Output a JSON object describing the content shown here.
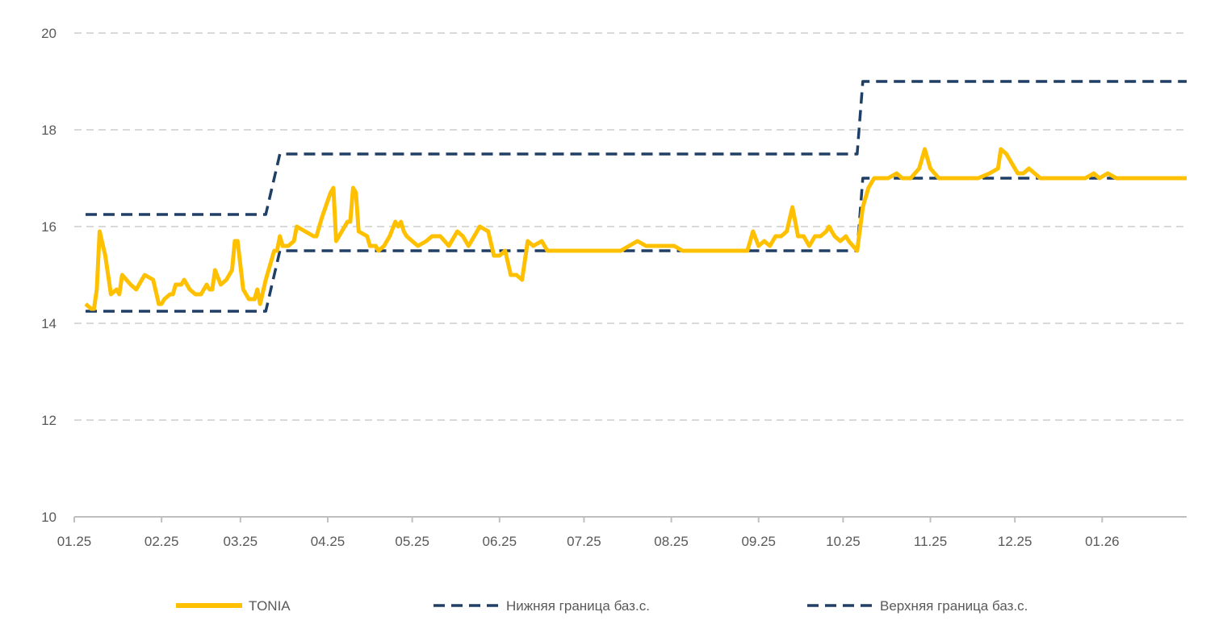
{
  "chart_data": {
    "type": "line",
    "title": "",
    "xlabel": "",
    "ylabel": "",
    "ylim": [
      10,
      20
    ],
    "yticks": [
      10,
      12,
      14,
      16,
      18,
      20
    ],
    "grid": "horizontal dashed",
    "legend_position": "bottom",
    "x_start": "2025-01-01",
    "x_end": "2026-01-31",
    "x_tick_labels": [
      {
        "date": "2025-01-01",
        "label": "01.25"
      },
      {
        "date": "2025-02-01",
        "label": "02.25"
      },
      {
        "date": "2025-03-01",
        "label": "03.25"
      },
      {
        "date": "2025-04-01",
        "label": "04.25"
      },
      {
        "date": "2025-05-01",
        "label": "05.25"
      },
      {
        "date": "2025-06-01",
        "label": "06.25"
      },
      {
        "date": "2025-07-01",
        "label": "07.25"
      },
      {
        "date": "2025-08-01",
        "label": "08.25"
      },
      {
        "date": "2025-09-01",
        "label": "09.25"
      },
      {
        "date": "2025-10-01",
        "label": "10.25"
      },
      {
        "date": "2025-11-01",
        "label": "11.25"
      },
      {
        "date": "2025-12-01",
        "label": "12.25"
      },
      {
        "date": "2026-01-01",
        "label": "01.26"
      }
    ],
    "series": [
      {
        "name": "TONIA",
        "color": "#FFC000",
        "style": "solid",
        "points": [
          [
            "2025-01-05",
            14.4
          ],
          [
            "2025-01-07",
            14.3
          ],
          [
            "2025-01-08",
            14.3
          ],
          [
            "2025-01-09",
            14.7
          ],
          [
            "2025-01-10",
            15.9
          ],
          [
            "2025-01-12",
            15.4
          ],
          [
            "2025-01-14",
            14.6
          ],
          [
            "2025-01-16",
            14.7
          ],
          [
            "2025-01-17",
            14.6
          ],
          [
            "2025-01-18",
            15.0
          ],
          [
            "2025-01-21",
            14.8
          ],
          [
            "2025-01-23",
            14.7
          ],
          [
            "2025-01-25",
            14.9
          ],
          [
            "2025-01-26",
            15.0
          ],
          [
            "2025-01-29",
            14.9
          ],
          [
            "2025-01-31",
            14.4
          ],
          [
            "2025-02-01",
            14.4
          ],
          [
            "2025-02-02",
            14.5
          ],
          [
            "2025-02-04",
            14.6
          ],
          [
            "2025-02-05",
            14.6
          ],
          [
            "2025-02-06",
            14.8
          ],
          [
            "2025-02-08",
            14.8
          ],
          [
            "2025-02-09",
            14.9
          ],
          [
            "2025-02-11",
            14.7
          ],
          [
            "2025-02-13",
            14.6
          ],
          [
            "2025-02-15",
            14.6
          ],
          [
            "2025-02-17",
            14.8
          ],
          [
            "2025-02-18",
            14.7
          ],
          [
            "2025-02-19",
            14.7
          ],
          [
            "2025-02-20",
            15.1
          ],
          [
            "2025-02-22",
            14.8
          ],
          [
            "2025-02-24",
            14.9
          ],
          [
            "2025-02-26",
            15.1
          ],
          [
            "2025-02-27",
            15.7
          ],
          [
            "2025-02-28",
            15.7
          ],
          [
            "2025-03-02",
            14.7
          ],
          [
            "2025-03-04",
            14.5
          ],
          [
            "2025-03-06",
            14.5
          ],
          [
            "2025-03-07",
            14.7
          ],
          [
            "2025-03-08",
            14.4
          ],
          [
            "2025-03-10",
            14.9
          ],
          [
            "2025-03-13",
            15.5
          ],
          [
            "2025-03-14",
            15.5
          ],
          [
            "2025-03-15",
            15.8
          ],
          [
            "2025-03-16",
            15.6
          ],
          [
            "2025-03-18",
            15.6
          ],
          [
            "2025-03-20",
            15.7
          ],
          [
            "2025-03-21",
            16.0
          ],
          [
            "2025-03-24",
            15.9
          ],
          [
            "2025-03-27",
            15.8
          ],
          [
            "2025-03-28",
            15.8
          ],
          [
            "2025-03-30",
            16.2
          ],
          [
            "2025-04-02",
            16.7
          ],
          [
            "2025-04-03",
            16.8
          ],
          [
            "2025-04-04",
            15.7
          ],
          [
            "2025-04-06",
            15.9
          ],
          [
            "2025-04-08",
            16.1
          ],
          [
            "2025-04-09",
            16.1
          ],
          [
            "2025-04-10",
            16.8
          ],
          [
            "2025-04-11",
            16.7
          ],
          [
            "2025-04-12",
            15.9
          ],
          [
            "2025-04-15",
            15.8
          ],
          [
            "2025-04-16",
            15.6
          ],
          [
            "2025-04-18",
            15.6
          ],
          [
            "2025-04-19",
            15.5
          ],
          [
            "2025-04-21",
            15.6
          ],
          [
            "2025-04-23",
            15.8
          ],
          [
            "2025-04-25",
            16.1
          ],
          [
            "2025-04-26",
            16.0
          ],
          [
            "2025-04-27",
            16.1
          ],
          [
            "2025-04-28",
            15.9
          ],
          [
            "2025-04-29",
            15.8
          ],
          [
            "2025-05-01",
            15.7
          ],
          [
            "2025-05-03",
            15.6
          ],
          [
            "2025-05-06",
            15.7
          ],
          [
            "2025-05-08",
            15.8
          ],
          [
            "2025-05-11",
            15.8
          ],
          [
            "2025-05-14",
            15.6
          ],
          [
            "2025-05-17",
            15.9
          ],
          [
            "2025-05-19",
            15.8
          ],
          [
            "2025-05-21",
            15.6
          ],
          [
            "2025-05-23",
            15.8
          ],
          [
            "2025-05-25",
            16.0
          ],
          [
            "2025-05-28",
            15.9
          ],
          [
            "2025-05-30",
            15.4
          ],
          [
            "2025-06-01",
            15.4
          ],
          [
            "2025-06-03",
            15.5
          ],
          [
            "2025-06-05",
            15.0
          ],
          [
            "2025-06-07",
            15.0
          ],
          [
            "2025-06-09",
            14.9
          ],
          [
            "2025-06-11",
            15.7
          ],
          [
            "2025-06-13",
            15.6
          ],
          [
            "2025-06-16",
            15.7
          ],
          [
            "2025-06-18",
            15.5
          ],
          [
            "2025-06-21",
            15.5
          ],
          [
            "2025-06-24",
            15.5
          ],
          [
            "2025-06-27",
            15.5
          ],
          [
            "2025-07-01",
            15.5
          ],
          [
            "2025-07-04",
            15.5
          ],
          [
            "2025-07-08",
            15.5
          ],
          [
            "2025-07-11",
            15.5
          ],
          [
            "2025-07-14",
            15.5
          ],
          [
            "2025-07-17",
            15.6
          ],
          [
            "2025-07-20",
            15.7
          ],
          [
            "2025-07-23",
            15.6
          ],
          [
            "2025-07-27",
            15.6
          ],
          [
            "2025-07-30",
            15.6
          ],
          [
            "2025-08-02",
            15.6
          ],
          [
            "2025-08-05",
            15.5
          ],
          [
            "2025-08-09",
            15.5
          ],
          [
            "2025-08-13",
            15.5
          ],
          [
            "2025-08-17",
            15.5
          ],
          [
            "2025-08-21",
            15.5
          ],
          [
            "2025-08-25",
            15.5
          ],
          [
            "2025-08-28",
            15.5
          ],
          [
            "2025-08-30",
            15.9
          ],
          [
            "2025-09-01",
            15.6
          ],
          [
            "2025-09-03",
            15.7
          ],
          [
            "2025-09-05",
            15.6
          ],
          [
            "2025-09-07",
            15.8
          ],
          [
            "2025-09-09",
            15.8
          ],
          [
            "2025-09-11",
            15.9
          ],
          [
            "2025-09-13",
            16.4
          ],
          [
            "2025-09-15",
            15.8
          ],
          [
            "2025-09-17",
            15.8
          ],
          [
            "2025-09-19",
            15.6
          ],
          [
            "2025-09-21",
            15.8
          ],
          [
            "2025-09-23",
            15.8
          ],
          [
            "2025-09-25",
            15.9
          ],
          [
            "2025-09-26",
            16.0
          ],
          [
            "2025-09-28",
            15.8
          ],
          [
            "2025-09-30",
            15.7
          ],
          [
            "2025-10-02",
            15.8
          ],
          [
            "2025-10-03",
            15.7
          ],
          [
            "2025-10-06",
            15.5
          ],
          [
            "2025-10-08",
            16.4
          ],
          [
            "2025-10-10",
            16.8
          ],
          [
            "2025-10-12",
            17.0
          ],
          [
            "2025-10-15",
            17.0
          ],
          [
            "2025-10-17",
            17.0
          ],
          [
            "2025-10-20",
            17.1
          ],
          [
            "2025-10-22",
            17.0
          ],
          [
            "2025-10-25",
            17.0
          ],
          [
            "2025-10-28",
            17.2
          ],
          [
            "2025-10-30",
            17.6
          ],
          [
            "2025-11-01",
            17.2
          ],
          [
            "2025-11-04",
            17.0
          ],
          [
            "2025-11-07",
            17.0
          ],
          [
            "2025-11-10",
            17.0
          ],
          [
            "2025-11-14",
            17.0
          ],
          [
            "2025-11-18",
            17.0
          ],
          [
            "2025-11-22",
            17.1
          ],
          [
            "2025-11-25",
            17.2
          ],
          [
            "2025-11-26",
            17.6
          ],
          [
            "2025-11-28",
            17.5
          ],
          [
            "2025-11-30",
            17.3
          ],
          [
            "2025-12-02",
            17.1
          ],
          [
            "2025-12-04",
            17.1
          ],
          [
            "2025-12-06",
            17.2
          ],
          [
            "2025-12-08",
            17.1
          ],
          [
            "2025-12-10",
            17.0
          ],
          [
            "2025-12-14",
            17.0
          ],
          [
            "2025-12-17",
            17.0
          ],
          [
            "2025-12-20",
            17.0
          ],
          [
            "2025-12-23",
            17.0
          ],
          [
            "2025-12-26",
            17.0
          ],
          [
            "2025-12-29",
            17.1
          ],
          [
            "2025-12-31",
            17.0
          ],
          [
            "2026-01-03",
            17.1
          ],
          [
            "2026-01-06",
            17.0
          ],
          [
            "2026-01-10",
            17.0
          ],
          [
            "2026-01-15",
            17.0
          ],
          [
            "2026-01-20",
            17.0
          ],
          [
            "2026-01-26",
            17.0
          ],
          [
            "2026-01-31",
            17.0
          ]
        ]
      },
      {
        "name": "Нижняя граница баз.с.",
        "color": "#1F3F66",
        "style": "dashed",
        "points": [
          [
            "2025-01-05",
            14.25
          ],
          [
            "2025-03-10",
            14.25
          ],
          [
            "2025-03-15",
            15.5
          ],
          [
            "2025-10-06",
            15.5
          ],
          [
            "2025-10-08",
            17.0
          ],
          [
            "2026-01-31",
            17.0
          ]
        ]
      },
      {
        "name": "Верхняя граница баз.с.",
        "color": "#1F3F66",
        "style": "dashed",
        "points": [
          [
            "2025-01-05",
            16.25
          ],
          [
            "2025-03-10",
            16.25
          ],
          [
            "2025-03-15",
            17.5
          ],
          [
            "2025-10-06",
            17.5
          ],
          [
            "2025-10-08",
            19.0
          ],
          [
            "2026-01-31",
            19.0
          ]
        ]
      }
    ]
  }
}
